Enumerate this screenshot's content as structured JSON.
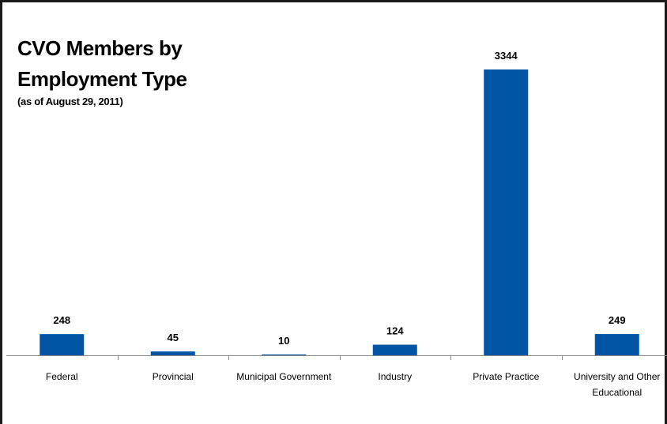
{
  "chart_data": {
    "type": "bar",
    "title_lines": [
      "CVO Members by",
      "Employment Type"
    ],
    "subtitle": "(as of August 29, 2011)",
    "categories": [
      "Federal",
      "Provincial",
      "Municipal Government",
      "Industry",
      "Private Practice",
      "University and Other Educational"
    ],
    "category_label_lines": [
      [
        "Federal"
      ],
      [
        "Provincial"
      ],
      [
        "Municipal Government"
      ],
      [
        "Industry"
      ],
      [
        "Private Practice"
      ],
      [
        "University and Other",
        "Educational"
      ]
    ],
    "values": [
      248,
      45,
      10,
      124,
      3344,
      249
    ],
    "bar_color": "#0055a5",
    "xlabel": "",
    "ylabel": "",
    "ylim": [
      0,
      3344
    ],
    "grid": false,
    "legend": "none",
    "data_labels": true
  }
}
